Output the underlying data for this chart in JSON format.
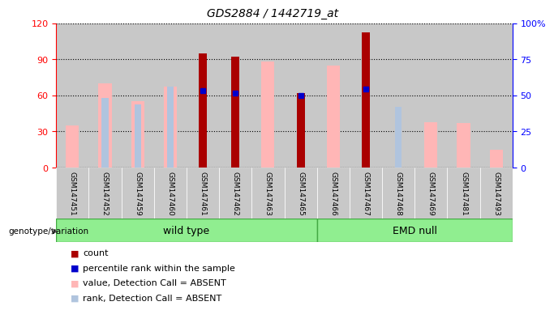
{
  "title": "GDS2884 / 1442719_at",
  "samples": [
    "GSM147451",
    "GSM147452",
    "GSM147459",
    "GSM147460",
    "GSM147461",
    "GSM147462",
    "GSM147463",
    "GSM147465",
    "GSM147466",
    "GSM147467",
    "GSM147468",
    "GSM147469",
    "GSM147481",
    "GSM147493"
  ],
  "count": [
    null,
    null,
    null,
    null,
    95,
    92,
    null,
    62,
    null,
    112,
    null,
    null,
    null,
    null
  ],
  "percentile_rank": [
    null,
    null,
    null,
    null,
    64,
    62,
    null,
    60,
    null,
    65,
    null,
    null,
    null,
    null
  ],
  "value_absent": [
    35,
    70,
    55,
    67,
    null,
    null,
    88,
    null,
    85,
    null,
    null,
    38,
    37,
    15
  ],
  "rank_absent": [
    null,
    48,
    44,
    56,
    null,
    null,
    null,
    null,
    null,
    null,
    42,
    null,
    null,
    null
  ],
  "left_ylim": [
    0,
    120
  ],
  "right_ylim": [
    0,
    100
  ],
  "left_yticks": [
    0,
    30,
    60,
    90,
    120
  ],
  "right_yticks": [
    0,
    25,
    50,
    75,
    100
  ],
  "right_yticklabels": [
    "0",
    "25",
    "50",
    "75",
    "100%"
  ],
  "wt_count": 8,
  "emd_count": 6,
  "count_color": "#AA0000",
  "percentile_color": "#0000CC",
  "value_absent_color": "#FFB6B6",
  "rank_absent_color": "#B0C4DE",
  "col_bg_color": "#C8C8C8",
  "group_fill": "#90EE90",
  "group_edge": "#44AA44",
  "bar_width": 0.25,
  "value_bar_width": 0.4,
  "rank_bar_width": 0.2
}
